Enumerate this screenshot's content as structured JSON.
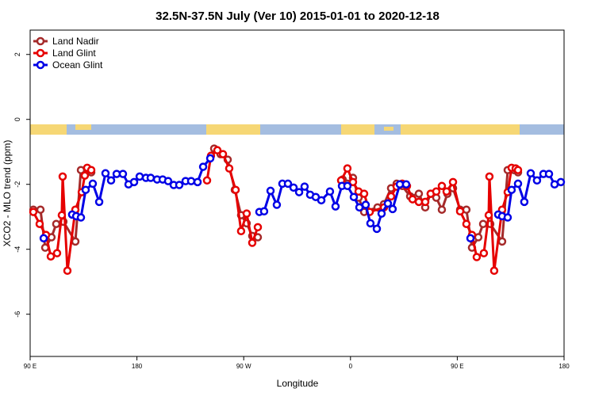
{
  "chart_data": {
    "type": "line",
    "title": "32.5N-37.5N July (Ver 10)   2015-01-01 to 2020-12-18",
    "xlabel": "Longitude",
    "ylabel": "XCO2 - MLO trend (ppm)",
    "xlim": [
      90,
      540
    ],
    "ylim": [
      -7.3,
      2.75
    ],
    "xticks": [
      {
        "value": 90,
        "label": "90 E"
      },
      180,
      {
        "value": 270,
        "label": "90 W"
      },
      0,
      {
        "value": 450,
        "label": "90 E"
      },
      180
    ],
    "yticks": [
      2,
      0,
      -2,
      -4,
      -6
    ],
    "legend": "top-left",
    "series": [
      {
        "name": "Land Nadir",
        "color": "#a52a2a",
        "x": [
          92.7,
          98.7,
          102.7,
          108,
          112,
          118,
          128.1,
          132.8,
          138.1,
          141.5,
          null,
          245.1,
          250.5,
          256.5,
          262.5,
          267.8,
          272.5,
          277.2,
          281.9,
          null,
          353.4,
          357.4,
          362.1,
          366.8,
          371.5,
          382.8,
          388.2,
          394.2,
          398.9,
          403.6,
          410.3,
          417.6,
          423,
          427.6,
          432.3,
          437,
          441.7,
          446.4,
          452.4,
          457.7,
          462.4,
          467.7,
          471.8,
          477.8,
          487.8,
          492.5,
          497.8,
          501.2
        ],
        "values": [
          -2.78,
          -2.78,
          -3.95,
          -3.63,
          -3.22,
          -3.15,
          -3.76,
          -1.56,
          -1.56,
          -1.63,
          null,
          -0.9,
          -1.07,
          -1.24,
          -2.17,
          -2.95,
          -3.2,
          -3.59,
          -3.63,
          null,
          -1.85,
          -1.98,
          -1.8,
          -2.41,
          -2.85,
          -2.71,
          -2.61,
          -2.12,
          -1.98,
          -2.05,
          -2.37,
          -2.29,
          -2.71,
          -2.29,
          -2.41,
          -2.78,
          -2.29,
          -2.12,
          -2.78,
          -2.78,
          -3.95,
          -3.63,
          -3.22,
          -3.22,
          -3.76,
          -1.56,
          -1.56,
          -1.63
        ]
      },
      {
        "name": "Land Glint",
        "color": "#e60000",
        "x": [
          92.7,
          98,
          103.4,
          107.4,
          112.7,
          116.7,
          117.4,
          121.4,
          128.1,
          133.5,
          136.1,
          138.1,
          141.5,
          null,
          239.1,
          242.4,
          247.8,
          252.5,
          257.8,
          263.2,
          267.8,
          272.5,
          277.2,
          281.9,
          null,
          352.1,
          357.4,
          362.1,
          366.8,
          371.5,
          376.2,
          388.2,
          394.2,
          398.9,
          403.6,
          407.6,
          412.3,
          417.6,
          423,
          427.6,
          432.3,
          437,
          441,
          446.4,
          452.4,
          457.7,
          462.4,
          466.4,
          472.4,
          476.5,
          477.1,
          481.1,
          487.8,
          492.5,
          495.8,
          499.2,
          501.2
        ],
        "values": [
          -2.85,
          -3.22,
          -3.56,
          -4.22,
          -4.12,
          -2.95,
          -1.76,
          -4.66,
          -2.78,
          -2.24,
          -1.73,
          -1.49,
          -1.56,
          null,
          -1.88,
          -1.12,
          -0.95,
          -1.07,
          -1.51,
          -2.17,
          -3.44,
          -2.9,
          -3.8,
          -3.32,
          null,
          -1.88,
          -1.51,
          -1.93,
          -2.22,
          -2.29,
          -2.85,
          -2.71,
          -2.37,
          -2.07,
          -1.98,
          -2.05,
          -2.46,
          -2.54,
          -2.54,
          -2.29,
          -2.22,
          -2.05,
          -2.22,
          -1.93,
          -2.83,
          -3.22,
          -3.56,
          -4.24,
          -4.12,
          -2.95,
          -1.76,
          -4.66,
          -2.78,
          -2.24,
          -1.49,
          -1.51,
          -1.56
        ]
      },
      {
        "name": "Ocean Glint",
        "color": "#0000e6",
        "x": [
          101.4,
          null,
          125.4,
          128.8,
          132.8,
          136.8,
          142.8,
          148.2,
          153.5,
          158.2,
          162.9,
          168.2,
          172.9,
          177.6,
          182.3,
          187.6,
          191.6,
          197,
          201.7,
          206.3,
          211,
          215.7,
          221,
          225.7,
          231.1,
          235.8,
          241.8,
          null,
          283.2,
          287.2,
          292.6,
          297.9,
          302.6,
          307.3,
          312,
          316.7,
          321.3,
          326,
          330.7,
          335.4,
          342.7,
          347.4,
          352.8,
          357.4,
          362.8,
          367.5,
          372.8,
          376.8,
          382.2,
          386.2,
          391.5,
          395.5,
          401.6,
          406.9,
          null,
          461.1,
          null,
          484.5,
          487.8,
          492.5,
          495.8,
          501.2,
          506.5,
          511.9,
          517.2,
          522.6,
          527.3,
          532,
          537.3
        ],
        "values": [
          -3.66,
          null,
          -2.93,
          -2.98,
          -3.02,
          -2.17,
          -1.98,
          -2.54,
          -1.66,
          -1.88,
          -1.68,
          -1.68,
          -2,
          -1.93,
          -1.76,
          -1.8,
          -1.8,
          -1.85,
          -1.85,
          -1.9,
          -2.02,
          -2.02,
          -1.9,
          -1.9,
          -1.93,
          -1.46,
          -1.2,
          null,
          -2.85,
          -2.83,
          -2.2,
          -2.63,
          -1.98,
          -1.98,
          -2.1,
          -2.24,
          -2.07,
          -2.32,
          -2.39,
          -2.49,
          -2.22,
          -2.68,
          -2.05,
          -2.05,
          -2.39,
          -2.71,
          -2.63,
          -3.2,
          -3.37,
          -2.9,
          -2.59,
          -2.76,
          -2,
          -2,
          null,
          -3.66,
          null,
          -2.93,
          -2.98,
          -3.02,
          -2.17,
          -1.98,
          -2.54,
          -1.66,
          -1.88,
          -1.68,
          -1.68,
          -2,
          -1.93
        ]
      }
    ]
  }
}
